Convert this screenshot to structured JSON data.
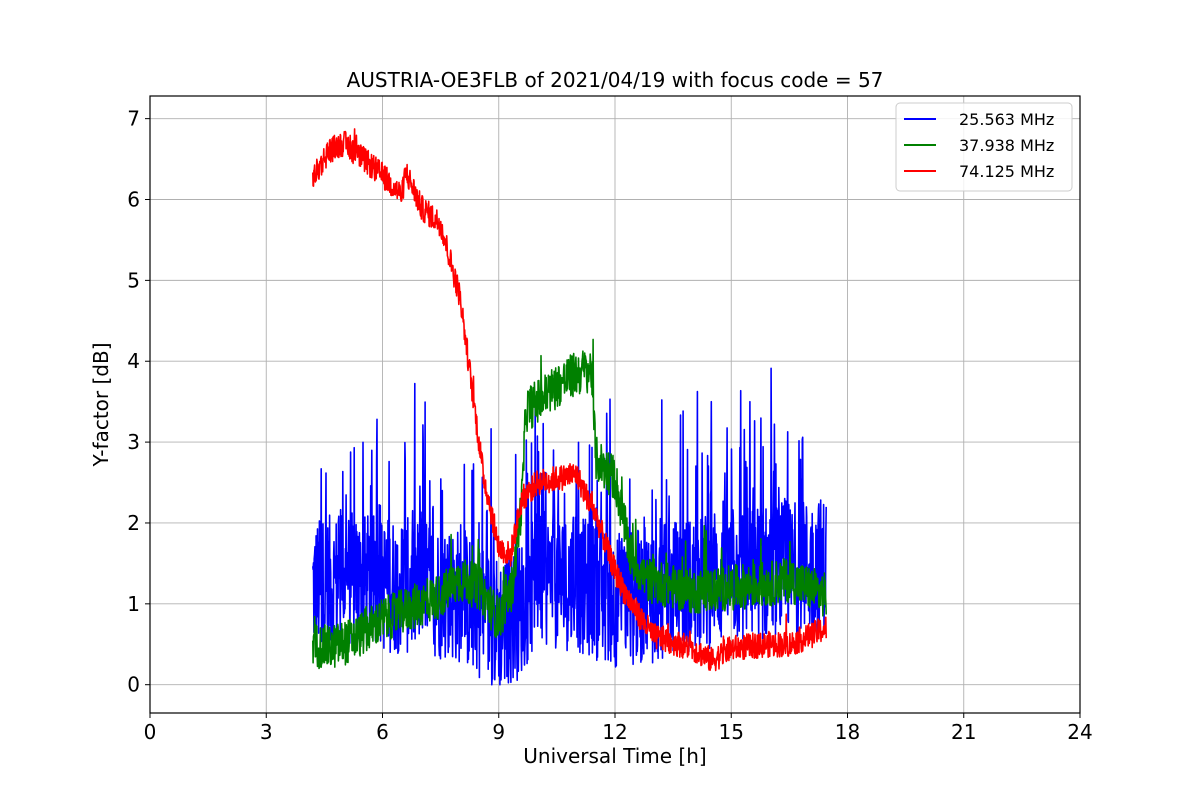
{
  "chart_data": {
    "type": "line",
    "title": "AUSTRIA-OE3FLB of 2021/04/19 with focus code = 57",
    "xlabel": "Universal Time [h]",
    "ylabel": "Y-factor [dB]",
    "xlim": [
      0,
      24
    ],
    "ylim": [
      -0.35,
      7.28
    ],
    "xticks": [
      0,
      3,
      6,
      9,
      12,
      15,
      18,
      21,
      24
    ],
    "yticks": [
      0,
      1,
      2,
      3,
      4,
      5,
      6,
      7
    ],
    "grid": true,
    "legend_position": "top-right",
    "series": [
      {
        "name": "25.563 MHz",
        "color": "#0000ff",
        "x_range": [
          4.2,
          17.45
        ],
        "noise": 0.85,
        "spikes": 0.14,
        "x": [
          4.2,
          5,
          6,
          7,
          8,
          9,
          9.5,
          10,
          11,
          12,
          13,
          14,
          15,
          16,
          17,
          17.45
        ],
        "y": [
          1.2,
          1.3,
          1.25,
          1.2,
          1.1,
          0.75,
          0.9,
          1.3,
          1.25,
          1.05,
          1.1,
          1.25,
          1.35,
          1.4,
          1.45,
          1.5
        ]
      },
      {
        "name": "37.938 MHz",
        "color": "#008000",
        "x_range": [
          4.2,
          17.45
        ],
        "noise": 0.28,
        "spikes": 0.03,
        "x": [
          4.2,
          4.6,
          5.2,
          6,
          6.5,
          7,
          7.5,
          8,
          8.5,
          9,
          9.35,
          9.6,
          9.7,
          10,
          10.5,
          11,
          11.4,
          11.5,
          12,
          12.4,
          12.8,
          14,
          15,
          16,
          16.5,
          17,
          17.45
        ],
        "y": [
          0.5,
          0.45,
          0.55,
          0.8,
          0.9,
          1.0,
          1.1,
          1.3,
          1.2,
          0.8,
          1.2,
          2.3,
          3.4,
          3.5,
          3.7,
          3.85,
          3.9,
          2.8,
          2.55,
          1.6,
          1.3,
          1.15,
          1.2,
          1.25,
          1.3,
          1.2,
          1.1
        ]
      },
      {
        "name": "74.125 MHz",
        "color": "#ff0000",
        "x_range": [
          4.2,
          17.45
        ],
        "noise": 0.16,
        "spikes": 0.015,
        "x": [
          4.2,
          4.6,
          5,
          5.5,
          6,
          6.5,
          6.6,
          7,
          7.5,
          8,
          8.3,
          8.6,
          9,
          9.3,
          9.6,
          10,
          11,
          11.5,
          12,
          12.3,
          12.7,
          13,
          14,
          14.5,
          15,
          16,
          16.5,
          17,
          17.45
        ],
        "y": [
          6.25,
          6.6,
          6.7,
          6.5,
          6.3,
          6.05,
          6.35,
          5.9,
          5.7,
          4.8,
          3.7,
          2.6,
          1.7,
          1.6,
          2.3,
          2.5,
          2.6,
          2.1,
          1.4,
          1.1,
          0.8,
          0.6,
          0.45,
          0.3,
          0.45,
          0.5,
          0.5,
          0.6,
          0.7
        ]
      }
    ]
  }
}
